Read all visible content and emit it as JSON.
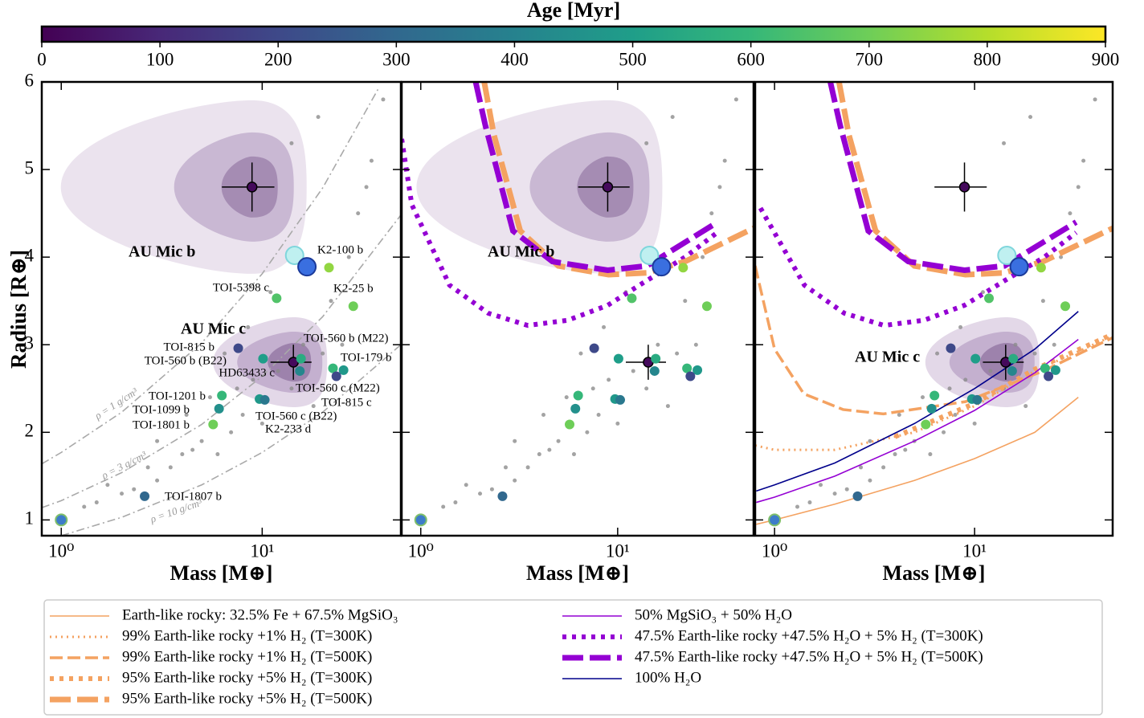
{
  "colorbar": {
    "label": "Age [Myr]",
    "colormap": "viridis",
    "lim": [
      0,
      900
    ],
    "ticks": [
      0,
      100,
      200,
      300,
      400,
      500,
      600,
      700,
      800,
      900
    ]
  },
  "planets": {
    "names": [
      "AU Mic b",
      "AU Mic c",
      "K2-100 b",
      "K2-25 b",
      "TOI-5398 c",
      "TOI-815 b",
      "TOI-560 b (B22)",
      "TOI-560 b (M22)",
      "TOI-179 b",
      "HD63433 c",
      "TOI-560 c (M22)",
      "TOI-815 c",
      "TOI-560 c (B22)",
      "K2-233 d",
      "TOI-1201 b",
      "TOI-1099 b",
      "TOI-1801 b",
      "TOI-1807 b"
    ],
    "mass": [
      8.9,
      14.3,
      21.5,
      28.4,
      11.8,
      7.6,
      10.1,
      15.6,
      22.5,
      15.4,
      25.4,
      23.4,
      9.7,
      10.3,
      6.3,
      6.1,
      5.7,
      2.6
    ],
    "radius": [
      4.8,
      2.8,
      3.88,
      3.44,
      3.53,
      2.96,
      2.84,
      2.84,
      2.73,
      2.7,
      2.71,
      2.64,
      2.38,
      2.37,
      2.42,
      2.27,
      2.09,
      1.27
    ],
    "age": [
      22,
      22,
      750,
      700,
      650,
      200,
      500,
      550,
      600,
      414,
      480,
      200,
      480,
      360,
      600,
      450,
      700,
      300
    ],
    "mass_err": [
      2.6,
      3.3,
      null,
      null,
      null,
      null,
      null,
      null,
      null,
      null,
      null,
      null,
      null,
      null,
      null,
      null,
      null,
      null
    ],
    "radius_err": [
      0.28,
      0.2,
      null,
      null,
      null,
      null,
      null,
      null,
      null,
      null,
      null,
      null,
      null,
      null,
      null,
      null,
      null,
      null
    ]
  },
  "field": {
    "color": "#8c8c8c",
    "x": [
      1.5,
      1.3,
      2,
      2.3,
      3,
      3.5,
      4,
      4.5,
      5,
      6,
      7,
      8,
      9,
      10,
      12,
      14,
      18,
      20,
      25,
      6.5,
      8.5,
      11,
      16,
      22,
      30,
      27,
      35,
      19,
      14,
      4.2,
      3,
      2.7,
      5.5,
      7.5,
      1.7,
      40,
      33
    ],
    "y": [
      1.2,
      1.15,
      1.3,
      1.35,
      1.45,
      1.6,
      1.75,
      1.8,
      1.9,
      1.75,
      2,
      2.2,
      2.6,
      2.1,
      2.7,
      2.5,
      2.3,
      2.9,
      3,
      2.9,
      3.2,
      3.6,
      3,
      3.5,
      4.5,
      4,
      5.1,
      5.6,
      5.3,
      2.2,
      1.9,
      1.6,
      2.4,
      2.5,
      1.4,
      5.8,
      4.8
    ]
  },
  "solar_system": {
    "x": [
      1,
      14.5,
      16.7
    ],
    "y": [
      1,
      4.02,
      3.89
    ]
  },
  "chart_data": [
    {
      "type": "scatter",
      "xlabel": "Mass [M⊕]",
      "ylabel": "Radius [R⊕]",
      "xscale": "log",
      "xlim": [
        0.8,
        49
      ],
      "ylim": [
        0.82,
        6
      ],
      "xticks": [
        {
          "value": 1,
          "label": "10⁰"
        },
        {
          "value": 10,
          "label": "10¹"
        }
      ],
      "yticks": [
        1,
        2,
        3,
        4,
        5,
        6
      ],
      "point_labels": true,
      "annotations": [
        "AU Mic b",
        "AU Mic c"
      ],
      "series": [
        {
          "name": "ρ = 1 g/cm³",
          "color": "#a9a9a9",
          "style": "dash-dot",
          "x": [
            0.8,
            1,
            2,
            5,
            10,
            20,
            38
          ],
          "values": [
            1.64,
            1.77,
            2.23,
            3.02,
            3.81,
            4.79,
            5.93
          ]
        },
        {
          "name": "ρ = 3 g/cm³",
          "color": "#a9a9a9",
          "style": "dash-dot",
          "x": [
            0.8,
            1,
            2,
            5,
            10,
            20,
            49
          ],
          "values": [
            1.14,
            1.22,
            1.54,
            2.09,
            2.64,
            3.32,
            4.48
          ]
        },
        {
          "name": "ρ = 10 g/cm³",
          "color": "#a9a9a9",
          "style": "dash-dot",
          "x": [
            1,
            2,
            5,
            10,
            20,
            49
          ],
          "values": [
            0.82,
            1.03,
            1.4,
            1.77,
            2.23,
            3
          ]
        }
      ]
    },
    {
      "type": "scatter",
      "xlabel": "Mass [M⊕]",
      "xscale": "log",
      "xlim": [
        0.8,
        49
      ],
      "ylim": [
        0.82,
        6
      ],
      "xticks": [
        {
          "value": 1,
          "label": "10⁰"
        },
        {
          "value": 10,
          "label": "10¹"
        }
      ],
      "yticks": [
        1,
        2,
        3,
        4,
        5,
        6
      ],
      "point_labels": false,
      "annotations": [
        "AU Mic b"
      ],
      "series": [
        {
          "color": "#9400d3",
          "style": "thick-dotted",
          "x": [
            0.8,
            0.9,
            1.4,
            2.2,
            3.5,
            5.6,
            8.9,
            14,
            22,
            32
          ],
          "values": [
            5.35,
            4.6,
            3.68,
            3.36,
            3.22,
            3.28,
            3.45,
            3.73,
            4,
            4.28
          ]
        },
        {
          "color": "#f4a261",
          "style": "thick-dashed",
          "x": [
            2.1,
            2.35,
            3.2,
            5,
            9,
            14,
            22,
            49
          ],
          "values": [
            6,
            5.4,
            4.3,
            3.9,
            3.8,
            3.82,
            3.95,
            4.33
          ]
        },
        {
          "color": "#9400d3",
          "style": "thick-dashed",
          "x": [
            1.9,
            2.13,
            2.94,
            4.66,
            8.9,
            14.1,
            32.2
          ],
          "values": [
            6,
            5.5,
            4.3,
            3.95,
            3.85,
            3.9,
            4.4
          ]
        }
      ]
    },
    {
      "type": "scatter",
      "xlabel": "Mass [M⊕]",
      "xscale": "log",
      "xlim": [
        0.8,
        49
      ],
      "ylim": [
        0.82,
        6
      ],
      "xticks": [
        {
          "value": 1,
          "label": "10⁰"
        },
        {
          "value": 10,
          "label": "10¹"
        }
      ],
      "yticks": [
        1,
        2,
        3,
        4,
        5,
        6
      ],
      "point_labels": false,
      "annotations": [
        "AU Mic c"
      ],
      "series": [
        {
          "name": "Earth-like rocky: 32.5% Fe + 67.5% MgSiO₃",
          "color": "#f4a261",
          "style": "thin",
          "x": [
            0.81,
            1,
            2,
            5,
            10,
            20,
            33
          ],
          "values": [
            0.95,
            1,
            1.18,
            1.45,
            1.7,
            2,
            2.4
          ]
        },
        {
          "name": "99% Earth-like rocky +1% H₂ (T=300K)",
          "color": "#f4a261",
          "style": "dotted",
          "x": [
            0.8,
            1,
            2,
            5,
            10,
            20,
            49
          ],
          "values": [
            1.85,
            1.8,
            1.8,
            2,
            2.3,
            2.7,
            3.1
          ]
        },
        {
          "name": "99% Earth-like rocky +1% H₂ (T=500K)",
          "color": "#f4a261",
          "style": "dashed",
          "x": [
            0.8,
            1,
            1.4,
            2.2,
            3.5,
            9,
            22,
            49
          ],
          "values": [
            3.9,
            2.95,
            2.44,
            2.26,
            2.21,
            2.35,
            2.7,
            3.08
          ]
        },
        {
          "name": "95% Earth-like rocky +5% H₂ (T=300K)",
          "color": "#f4a261",
          "style": "thick-dotted",
          "x": [
            4,
            10,
            20,
            49
          ],
          "values": [
            1.95,
            2.33,
            2.72,
            3.12
          ]
        },
        {
          "name": "95% Earth-like rocky +5% H₂ (T=500K)",
          "color": "#f4a261",
          "style": "thick-dashed",
          "x": [
            2.1,
            2.35,
            3.2,
            5,
            9,
            14,
            22,
            49
          ],
          "values": [
            6,
            5.4,
            4.3,
            3.9,
            3.8,
            3.82,
            3.95,
            4.33
          ]
        },
        {
          "name": "50% MgSiO₃ + 50% H₂O",
          "color": "#9400d3",
          "style": "thin",
          "x": [
            0.81,
            1,
            2,
            5,
            10,
            20,
            33
          ],
          "values": [
            1.2,
            1.26,
            1.5,
            1.9,
            2.25,
            2.68,
            3.06
          ]
        },
        {
          "name": "47.5% Earth-like rocky +47.5% H₂O + 5% H₂ (T=300K)",
          "color": "#9400d3",
          "style": "thick-dotted",
          "x": [
            0.85,
            1.41,
            2.23,
            3.53,
            5.6,
            8.9,
            14.1,
            22.3,
            32.2
          ],
          "values": [
            4.56,
            3.68,
            3.36,
            3.22,
            3.28,
            3.45,
            3.73,
            4,
            4.28
          ]
        },
        {
          "name": "47.5% Earth-like rocky +47.5% H₂O + 5% H₂ (T=500K)",
          "color": "#9400d3",
          "style": "thick-dashed",
          "x": [
            1.9,
            2.13,
            2.94,
            4.66,
            8.9,
            14.1,
            32.2
          ],
          "values": [
            6,
            5.5,
            4.3,
            3.95,
            3.85,
            3.9,
            4.4
          ]
        },
        {
          "name": "100% H₂O",
          "color": "#00008b",
          "style": "thin",
          "x": [
            0.81,
            1,
            2,
            5,
            10,
            20,
            33
          ],
          "values": [
            1.33,
            1.4,
            1.65,
            2.1,
            2.5,
            2.95,
            3.38
          ]
        }
      ]
    }
  ]
}
